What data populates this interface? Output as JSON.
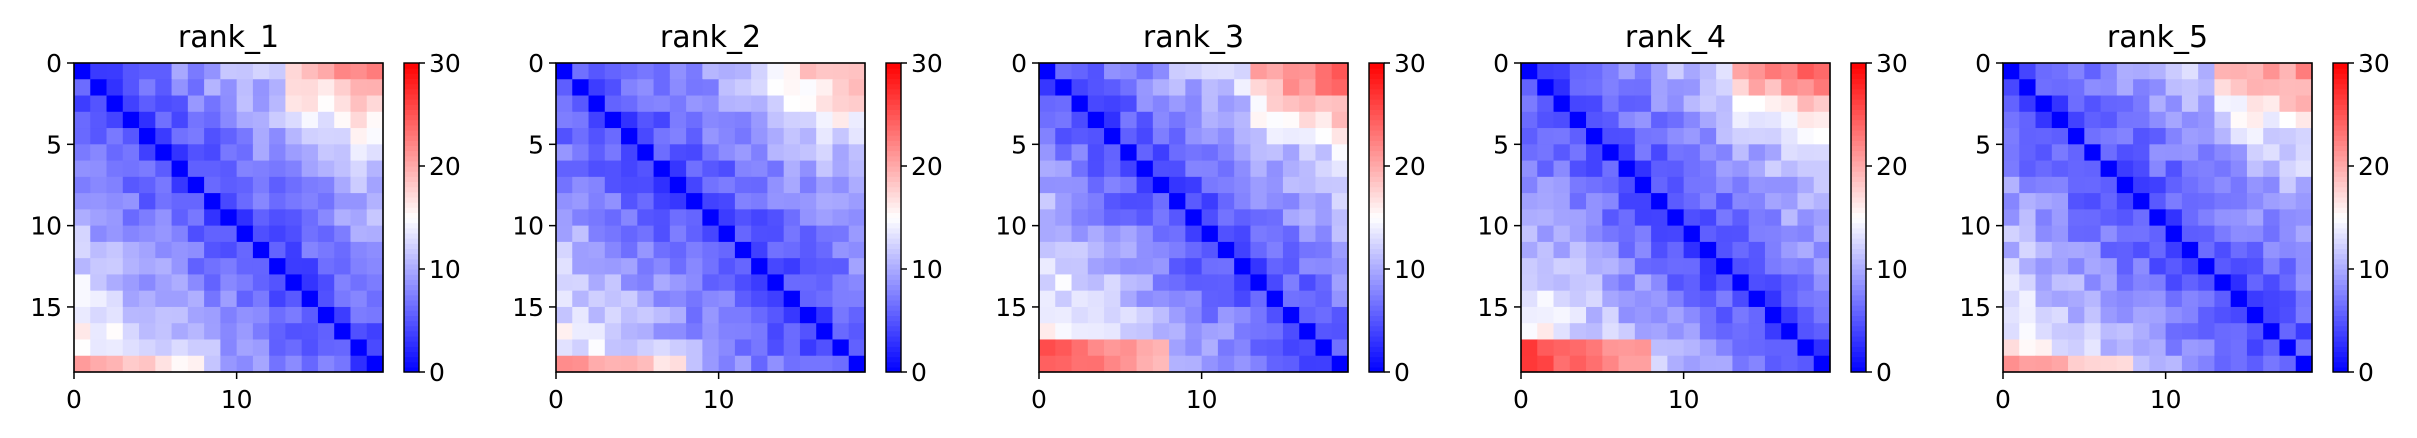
{
  "chart_data": [
    {
      "type": "heatmap",
      "title": "rank_1",
      "size": 19,
      "farBase": 16,
      "farGain": 4,
      "lastRowMax": 20,
      "hotRows": 1,
      "yticks": [
        0,
        5,
        10,
        15
      ],
      "xticks": [
        0,
        10
      ],
      "colorbar": {
        "ticks": [
          0,
          10,
          20,
          30
        ],
        "range": [
          0,
          30
        ],
        "colormap": "bwr"
      }
    },
    {
      "type": "heatmap",
      "title": "rank_2",
      "size": 19,
      "farBase": 15,
      "farGain": 3,
      "lastRowMax": 21,
      "hotRows": 1,
      "yticks": [
        0,
        5,
        10,
        15
      ],
      "xticks": [
        0,
        10
      ],
      "colorbar": {
        "ticks": [
          0,
          10,
          20,
          30
        ],
        "range": [
          0,
          30
        ],
        "colormap": "bwr"
      }
    },
    {
      "type": "heatmap",
      "title": "rank_3",
      "size": 19,
      "farBase": 18,
      "farGain": 5,
      "lastRowMax": 24,
      "hotRows": 2,
      "yticks": [
        0,
        5,
        10,
        15
      ],
      "xticks": [
        0,
        10
      ],
      "colorbar": {
        "ticks": [
          0,
          10,
          20,
          30
        ],
        "range": [
          0,
          30
        ],
        "colormap": "bwr"
      }
    },
    {
      "type": "heatmap",
      "title": "rank_4",
      "size": 19,
      "farBase": 17,
      "farGain": 5,
      "lastRowMax": 25,
      "hotRows": 2,
      "yticks": [
        0,
        5,
        10,
        15
      ],
      "xticks": [
        0,
        10
      ],
      "colorbar": {
        "ticks": [
          0,
          10,
          20,
          30
        ],
        "range": [
          0,
          30
        ],
        "colormap": "bwr"
      }
    },
    {
      "type": "heatmap",
      "title": "rank_5",
      "size": 19,
      "farBase": 16,
      "farGain": 4,
      "lastRowMax": 21,
      "hotRows": 1,
      "yticks": [
        0,
        5,
        10,
        15
      ],
      "xticks": [
        0,
        10
      ],
      "colorbar": {
        "ticks": [
          0,
          10,
          20,
          30
        ],
        "range": [
          0,
          30
        ],
        "colormap": "bwr"
      }
    }
  ]
}
